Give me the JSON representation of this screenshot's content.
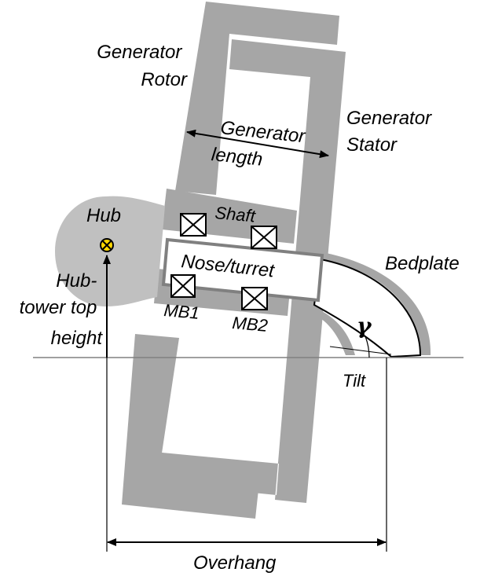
{
  "labels": {
    "generator_rotor": [
      "Generator",
      "Rotor"
    ],
    "generator_stator": [
      "Generator",
      "Stator"
    ],
    "generator_length": [
      "Generator",
      "length"
    ],
    "hub": "Hub",
    "shaft": "Shaft",
    "nose_turret": "Nose/turret",
    "bedplate": "Bedplate",
    "hub_tower_top_height": [
      "Hub-",
      "tower top",
      "height"
    ],
    "mb1": "MB1",
    "mb2": "MB2",
    "gamma": "γ",
    "tilt": "Tilt",
    "overhang": "Overhang"
  },
  "colors": {
    "structure_gray": "#a6a6a6",
    "hub_gray": "#c0c0c0",
    "line": "#000000",
    "background": "#ffffff",
    "hub_marker": "#ffd700"
  }
}
